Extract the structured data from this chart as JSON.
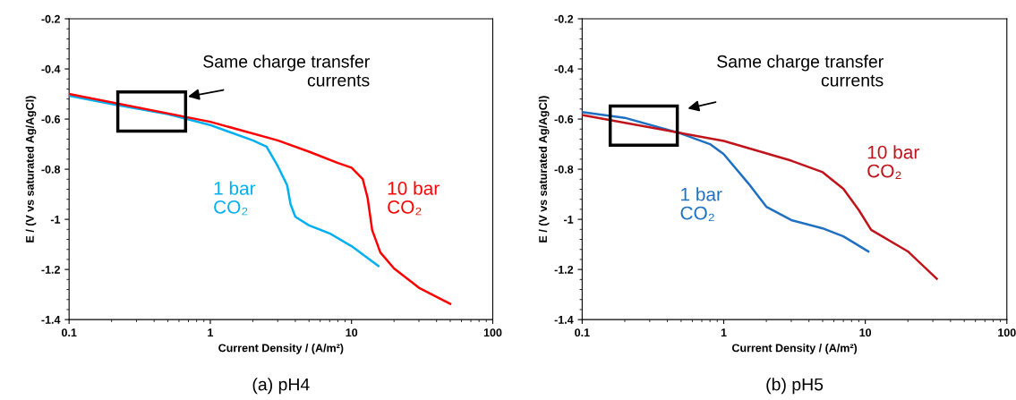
{
  "chart_data": [
    {
      "type": "line",
      "title": "(a) pH4",
      "xlabel": "Current Density / (A/m²)",
      "ylabel": "E / (V vs saturated Ag/AgCl)",
      "log": "x",
      "grid": false,
      "xlim": [
        0.1,
        100
      ],
      "xticks": [
        0.1,
        1,
        10,
        100
      ],
      "ylim": [
        -1.4,
        -0.2
      ],
      "yticks": [
        -1.4,
        -1.2,
        -1,
        -0.8,
        -0.6,
        -0.4,
        -0.2
      ],
      "annotations": [
        "Same charge transfer\ncurrents"
      ],
      "series": [
        {
          "name": "1 bar\nCO₂",
          "color": "#00b0f0",
          "x": [
            0.1,
            0.2,
            0.5,
            1,
            2,
            2.5,
            3,
            3.5,
            3.7,
            4,
            5,
            7,
            10,
            15.5
          ],
          "values": [
            -0.507,
            -0.54,
            -0.58,
            -0.624,
            -0.685,
            -0.71,
            -0.787,
            -0.864,
            -0.94,
            -0.99,
            -1.024,
            -1.056,
            -1.107,
            -1.186
          ]
        },
        {
          "name": "10 bar\nCO₂",
          "color": "#ff0000",
          "x": [
            0.1,
            1,
            3,
            5,
            8,
            10,
            12,
            13,
            14,
            16,
            20,
            30,
            50
          ],
          "values": [
            -0.5,
            -0.611,
            -0.685,
            -0.73,
            -0.775,
            -0.794,
            -0.839,
            -0.915,
            -1.043,
            -1.132,
            -1.196,
            -1.273,
            -1.337
          ]
        }
      ]
    },
    {
      "type": "line",
      "title": "(b) pH5",
      "xlabel": "Current Density / (A/m²)",
      "ylabel": "E / (V vs saturated Ag/AgCl)",
      "log": "x",
      "grid": false,
      "xlim": [
        0.1,
        100
      ],
      "xticks": [
        0.1,
        1,
        10,
        100
      ],
      "ylim": [
        -1.4,
        -0.2
      ],
      "yticks": [
        -1.4,
        -1.2,
        -1,
        -0.8,
        -0.6,
        -0.4,
        -0.2
      ],
      "annotations": [
        "Same charge transfer\ncurrents"
      ],
      "series": [
        {
          "name": "1 bar\nCO₂",
          "color": "#1f70c1",
          "x": [
            0.1,
            0.2,
            0.5,
            0.8,
            1,
            1.5,
            2,
            3,
            5,
            7,
            10.5
          ],
          "values": [
            -0.572,
            -0.595,
            -0.658,
            -0.7,
            -0.74,
            -0.858,
            -0.95,
            -1.003,
            -1.036,
            -1.068,
            -1.128
          ]
        },
        {
          "name": "10 bar\nCO₂",
          "color": "#c0141c",
          "x": [
            0.1,
            1,
            3,
            5,
            7,
            9,
            11,
            20,
            32
          ],
          "values": [
            -0.584,
            -0.687,
            -0.766,
            -0.812,
            -0.878,
            -0.963,
            -1.042,
            -1.128,
            -1.237
          ]
        }
      ]
    }
  ]
}
